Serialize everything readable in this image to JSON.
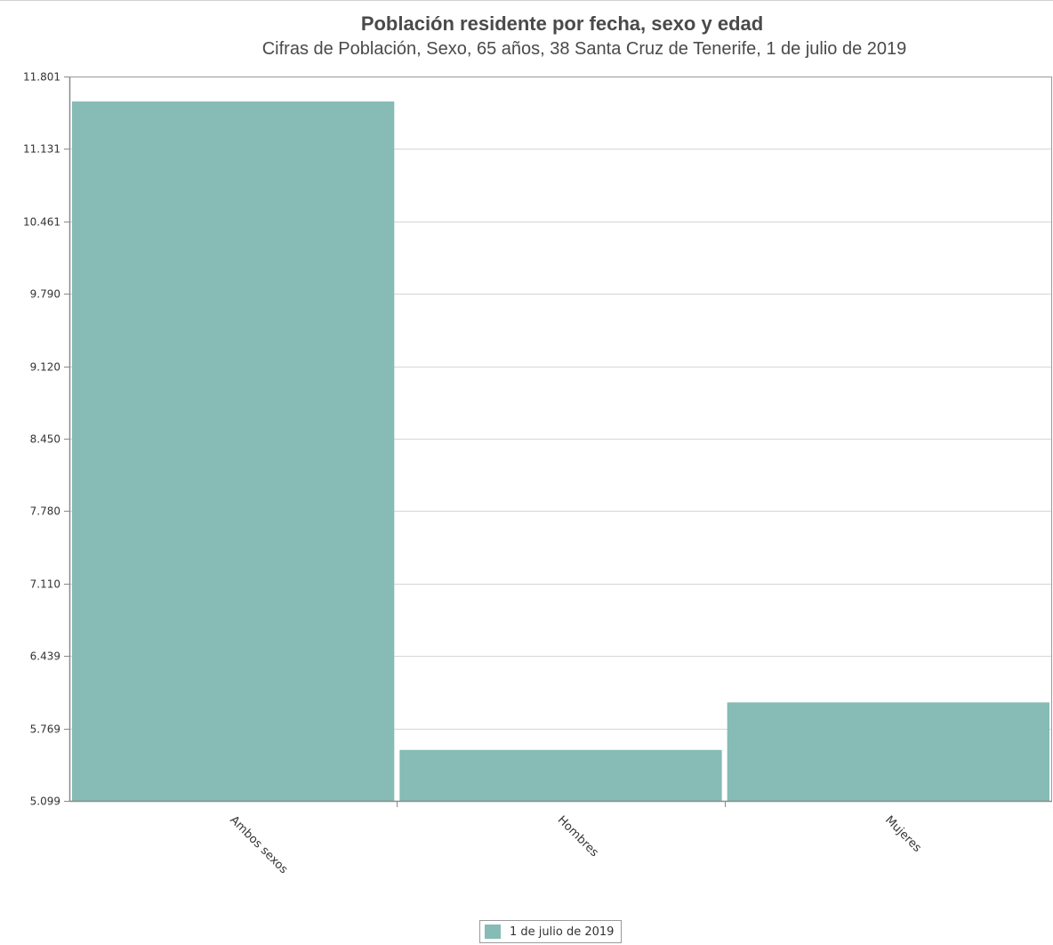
{
  "chart_data": {
    "type": "bar",
    "title": "Población residente por fecha, sexo y edad",
    "subtitle": "Cifras de Población, Sexo, 65 años, 38 Santa Cruz de Tenerife, 1 de julio de 2019",
    "xlabel": "",
    "ylabel": "",
    "categories": [
      "Ambos sexos",
      "Hombres",
      "Mujeres"
    ],
    "series": [
      {
        "name": "1 de julio de 2019",
        "values": [
          11570,
          5570,
          6010
        ]
      }
    ],
    "ylim": [
      5099,
      11801
    ],
    "yticks": [
      5099,
      5769,
      6439,
      7110,
      7780,
      8450,
      9120,
      9790,
      10461,
      11131,
      11801
    ],
    "ytick_labels": [
      "5.099",
      "5.769",
      "6.439",
      "7.110",
      "7.780",
      "8.450",
      "9.120",
      "9.790",
      "10.461",
      "11.131",
      "11.801"
    ],
    "grid": true,
    "legend_position": "bottom-center",
    "bar_color": "#86bbb6"
  }
}
